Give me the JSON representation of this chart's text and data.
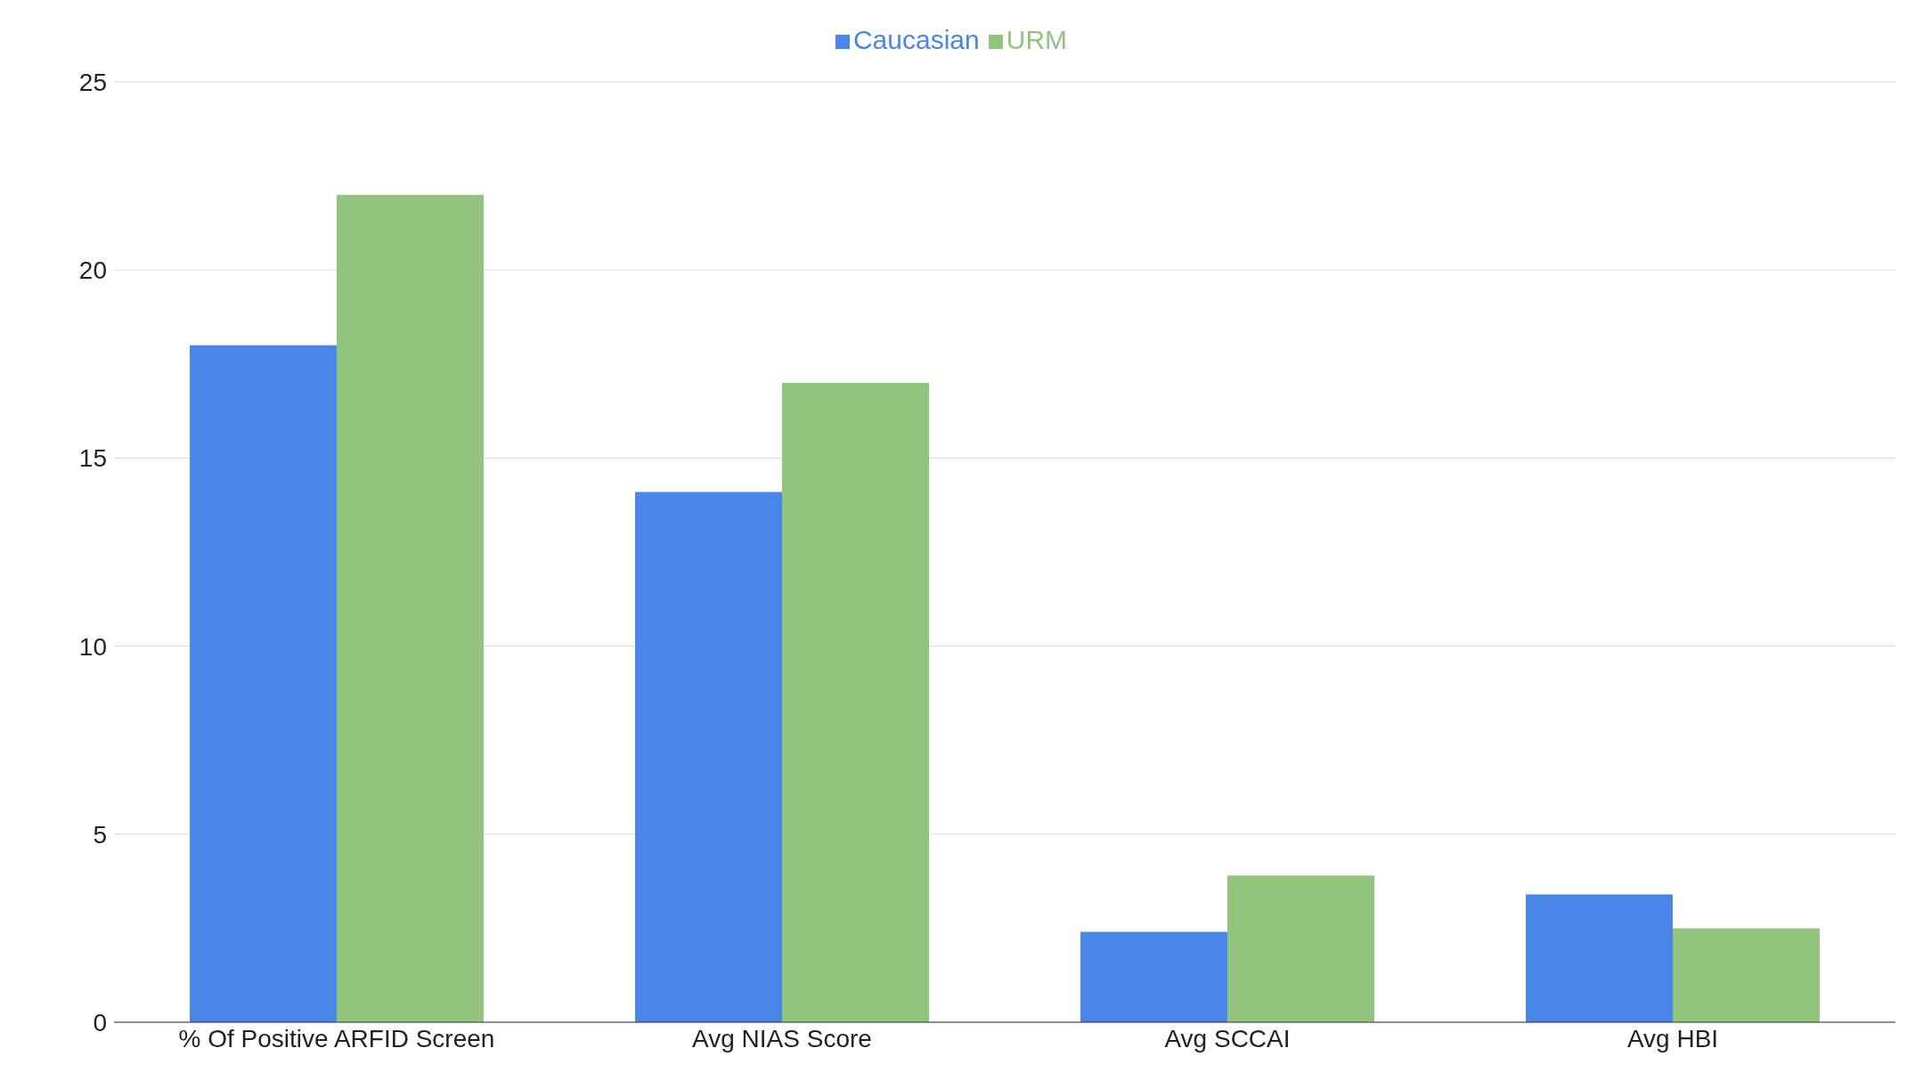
{
  "chart_data": {
    "type": "bar",
    "categories": [
      "% Of Positive ARFID Screen",
      "Avg NIAS Score",
      "Avg SCCAI",
      "Avg HBI"
    ],
    "series": [
      {
        "name": "Caucasian",
        "color": "#4a86e8",
        "values": [
          18,
          14.1,
          2.4,
          3.4
        ]
      },
      {
        "name": "URM",
        "color": "#93c47d",
        "values": [
          22,
          17,
          3.9,
          2.5
        ]
      }
    ],
    "ylim": [
      0,
      25
    ],
    "yticks": [
      0,
      5,
      10,
      15,
      20,
      25
    ],
    "grid": "y",
    "legend": "top"
  }
}
